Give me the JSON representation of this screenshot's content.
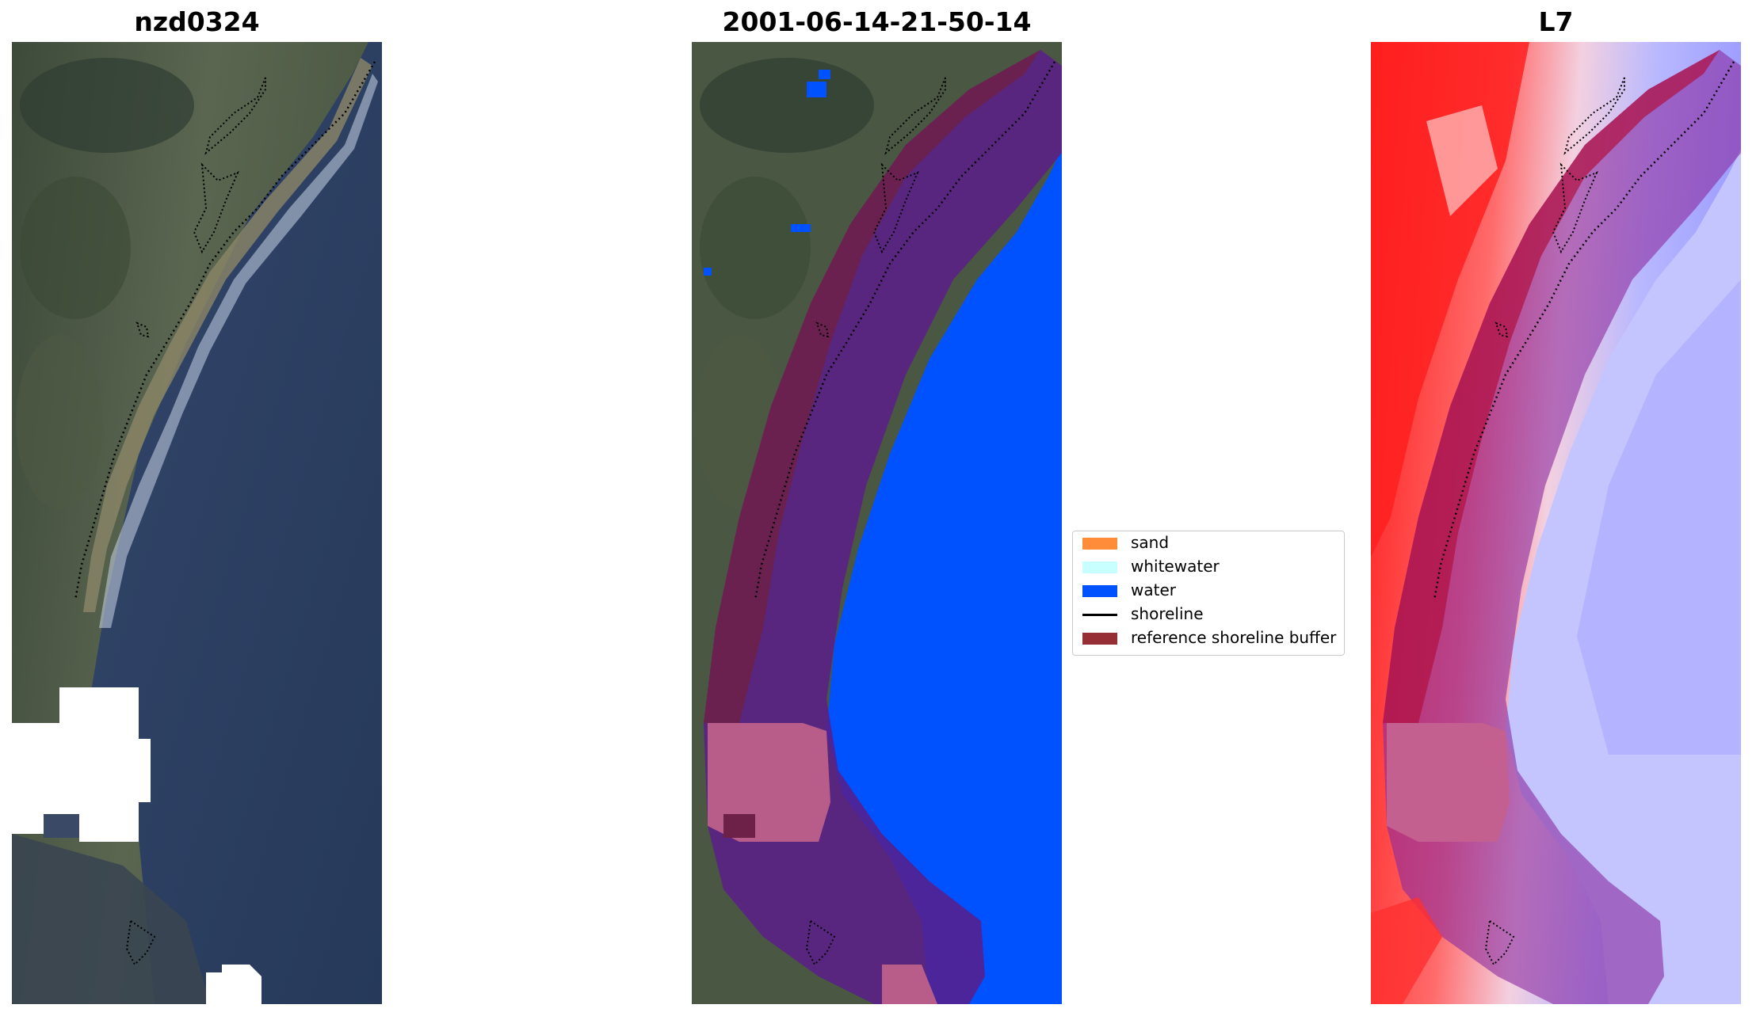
{
  "panels": [
    {
      "title": "nzd0324"
    },
    {
      "title": "2001-06-14-21-50-14"
    },
    {
      "title": "L7"
    }
  ],
  "legend": {
    "items": [
      {
        "label": "sand",
        "color": "#ff8c38",
        "kind": "patch"
      },
      {
        "label": "whitewater",
        "color": "#c8ffff",
        "kind": "patch"
      },
      {
        "label": "water",
        "color": "#0052ff",
        "kind": "patch"
      },
      {
        "label": "shoreline",
        "color": "#000000",
        "kind": "line"
      },
      {
        "label": "reference shoreline buffer",
        "color": "#962f35",
        "kind": "patch"
      }
    ]
  },
  "colors": {
    "land_dark": "#3a4a3a",
    "land_mid": "#556049",
    "ocean": "#2c3e5c",
    "cloud": "#ffffff",
    "buffer_overlay": "#7a1f5a",
    "buffer_ocean_overlay": "#4a2090",
    "cloud_buffer_overlay": "#b85c8a",
    "index_high": "#ff0000",
    "index_low": "#3030ff"
  }
}
